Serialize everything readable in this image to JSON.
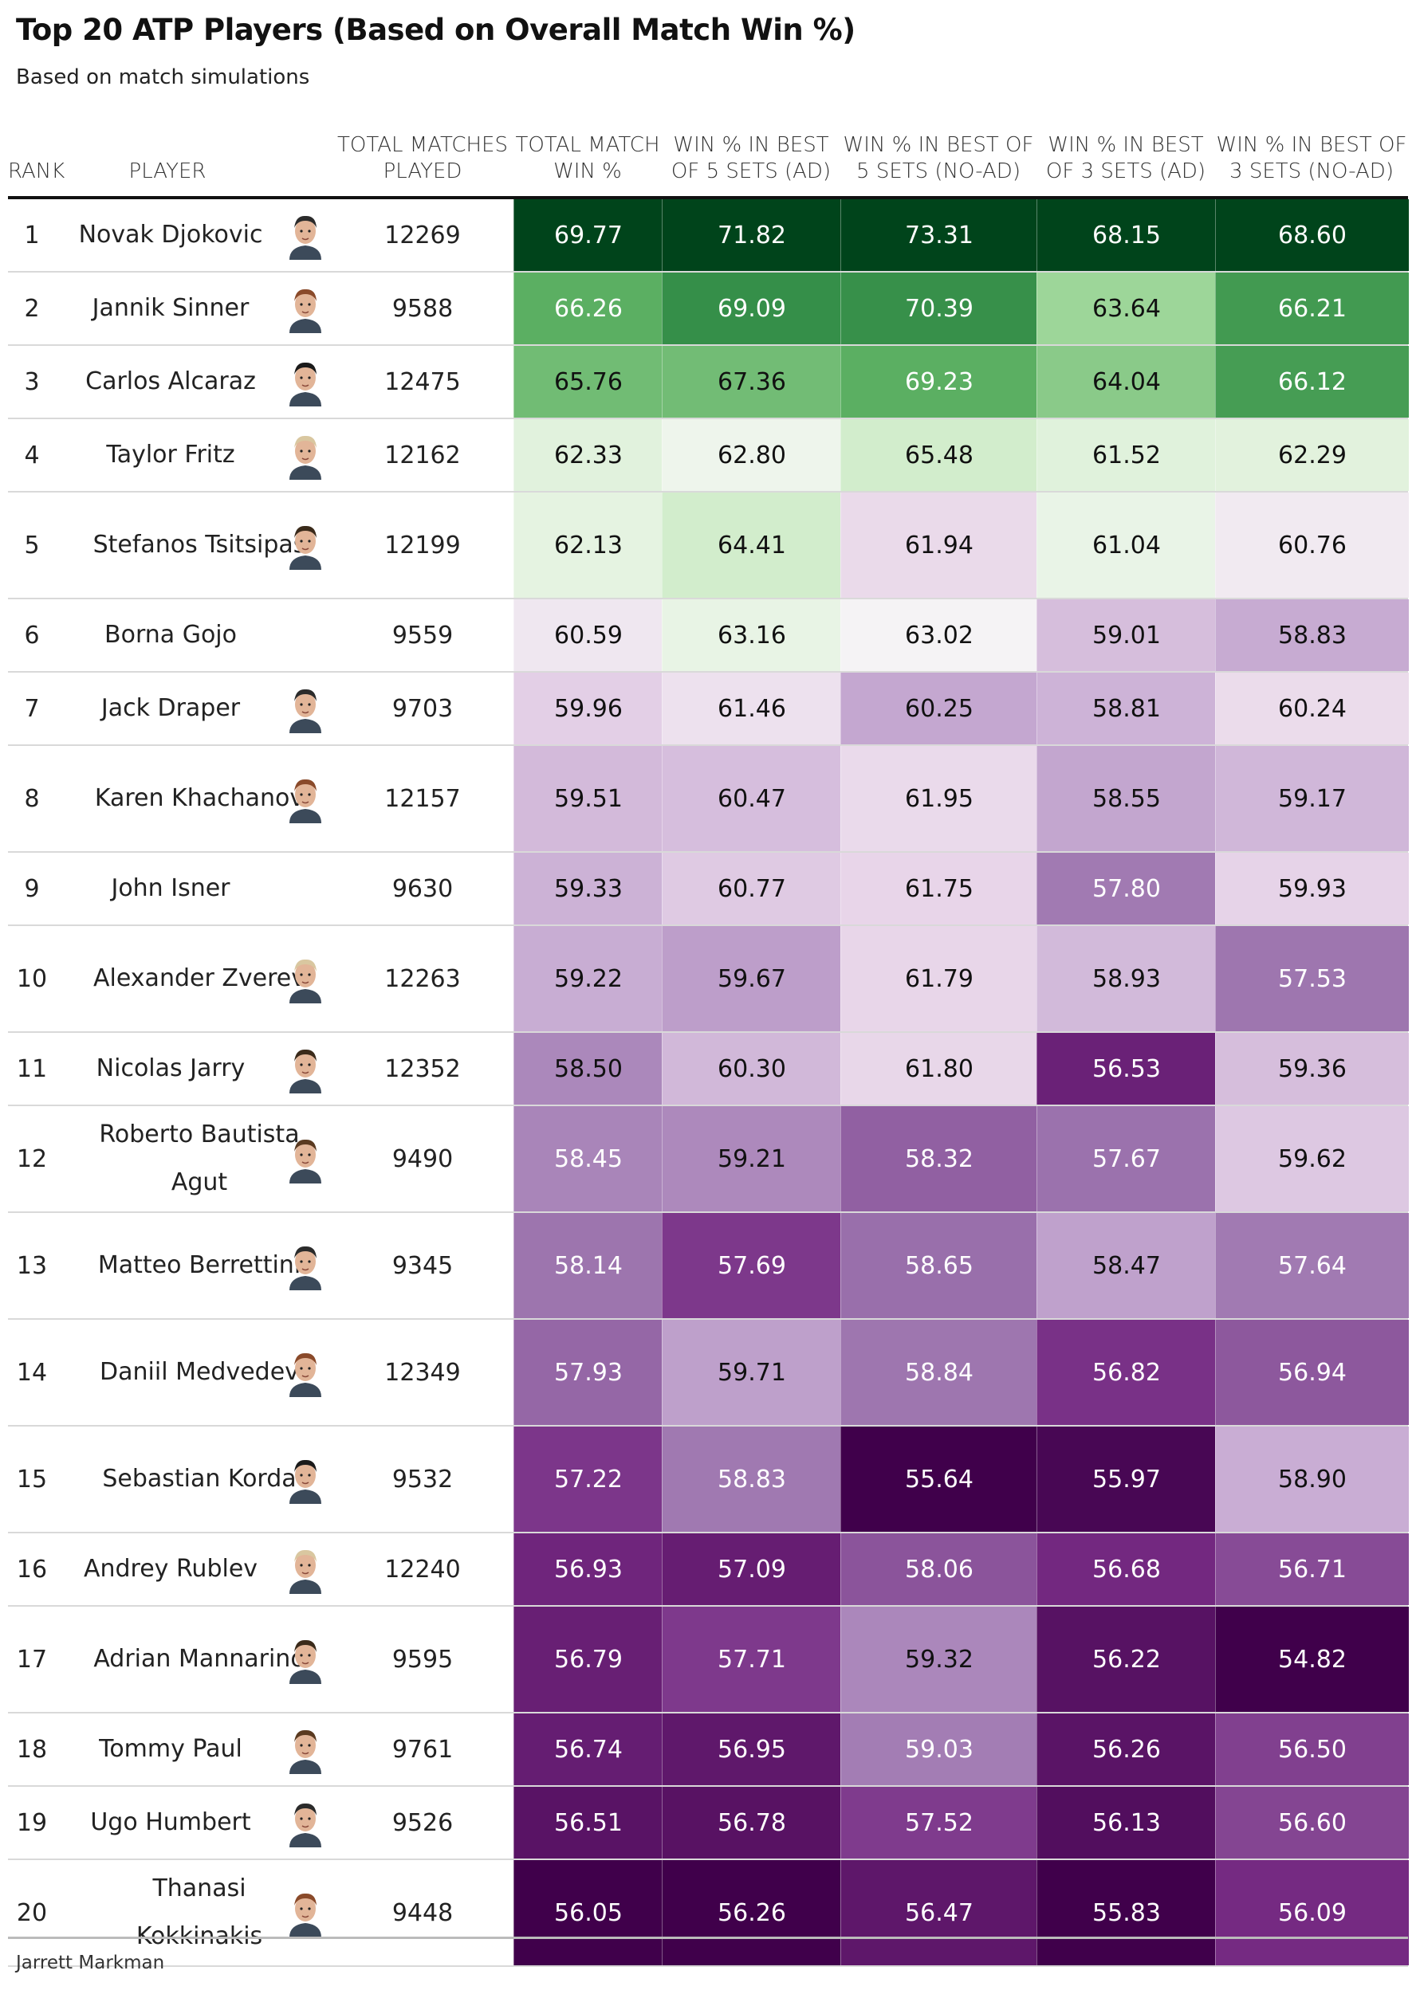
{
  "title": "Top 20 ATP Players (Based on Overall Match Win %)",
  "subtitle": "Based on match simulations",
  "footer": "Jarrett Markman",
  "columns": {
    "rank": "RANK",
    "player": "PLAYER",
    "matches": "TOTAL MATCHES PLAYED",
    "total_win": "TOTAL MATCH WIN %",
    "bo5_ad": "WIN % IN BEST OF 5 SETS (AD)",
    "bo5_noad": "WIN % IN BEST OF 5 SETS (NO-AD)",
    "bo3_ad": "WIN % IN BEST OF 3 SETS (AD)",
    "bo3_noad": "WIN % IN BEST OF 3 SETS (NO-AD)"
  },
  "colors": {
    "high": "#00441b",
    "mid": "#f7f7f7",
    "low": "#40004b"
  },
  "chart_data": {
    "type": "table",
    "title": "Top 20 ATP Players (Based on Overall Match Win %)",
    "subtitle": "Based on match simulations",
    "color_scale": "diverging green-white-purple per column",
    "rows": [
      {
        "rank": "1",
        "player": "Novak Djokovic",
        "matches": "12269",
        "avatar": true,
        "values": [
          "69.77",
          "71.82",
          "73.31",
          "68.15",
          "68.60"
        ]
      },
      {
        "rank": "2",
        "player": "Jannik Sinner",
        "matches": "9588",
        "avatar": true,
        "values": [
          "66.26",
          "69.09",
          "70.39",
          "63.64",
          "66.21"
        ]
      },
      {
        "rank": "3",
        "player": "Carlos Alcaraz",
        "matches": "12475",
        "avatar": true,
        "values": [
          "65.76",
          "67.36",
          "69.23",
          "64.04",
          "66.12"
        ]
      },
      {
        "rank": "4",
        "player": "Taylor Fritz",
        "matches": "12162",
        "avatar": true,
        "values": [
          "62.33",
          "62.80",
          "65.48",
          "61.52",
          "62.29"
        ]
      },
      {
        "rank": "5",
        "player": "Stefanos Tsitsipas",
        "matches": "12199",
        "avatar": true,
        "values": [
          "62.13",
          "64.41",
          "61.94",
          "61.04",
          "60.76"
        ]
      },
      {
        "rank": "6",
        "player": "Borna Gojo",
        "matches": "9559",
        "avatar": false,
        "values": [
          "60.59",
          "63.16",
          "63.02",
          "59.01",
          "58.83"
        ]
      },
      {
        "rank": "7",
        "player": "Jack Draper",
        "matches": "9703",
        "avatar": true,
        "values": [
          "59.96",
          "61.46",
          "60.25",
          "58.81",
          "60.24"
        ]
      },
      {
        "rank": "8",
        "player": "Karen Khachanov",
        "matches": "12157",
        "avatar": true,
        "values": [
          "59.51",
          "60.47",
          "61.95",
          "58.55",
          "59.17"
        ]
      },
      {
        "rank": "9",
        "player": "John Isner",
        "matches": "9630",
        "avatar": false,
        "values": [
          "59.33",
          "60.77",
          "61.75",
          "57.80",
          "59.93"
        ]
      },
      {
        "rank": "10",
        "player": "Alexander Zverev",
        "matches": "12263",
        "avatar": true,
        "values": [
          "59.22",
          "59.67",
          "61.79",
          "58.93",
          "57.53"
        ]
      },
      {
        "rank": "11",
        "player": "Nicolas Jarry",
        "matches": "12352",
        "avatar": true,
        "values": [
          "58.50",
          "60.30",
          "61.80",
          "56.53",
          "59.36"
        ]
      },
      {
        "rank": "12",
        "player": "Roberto Bautista Agut",
        "matches": "9490",
        "avatar": true,
        "values": [
          "58.45",
          "59.21",
          "58.32",
          "57.67",
          "59.62"
        ]
      },
      {
        "rank": "13",
        "player": "Matteo Berrettini",
        "matches": "9345",
        "avatar": true,
        "values": [
          "58.14",
          "57.69",
          "58.65",
          "58.47",
          "57.64"
        ]
      },
      {
        "rank": "14",
        "player": "Daniil Medvedev",
        "matches": "12349",
        "avatar": true,
        "values": [
          "57.93",
          "59.71",
          "58.84",
          "56.82",
          "56.94"
        ]
      },
      {
        "rank": "15",
        "player": "Sebastian Korda",
        "matches": "9532",
        "avatar": true,
        "values": [
          "57.22",
          "58.83",
          "55.64",
          "55.97",
          "58.90"
        ]
      },
      {
        "rank": "16",
        "player": "Andrey Rublev",
        "matches": "12240",
        "avatar": true,
        "values": [
          "56.93",
          "57.09",
          "58.06",
          "56.68",
          "56.71"
        ]
      },
      {
        "rank": "17",
        "player": "Adrian Mannarino",
        "matches": "9595",
        "avatar": true,
        "values": [
          "56.79",
          "57.71",
          "59.32",
          "56.22",
          "54.82"
        ]
      },
      {
        "rank": "18",
        "player": "Tommy Paul",
        "matches": "9761",
        "avatar": true,
        "values": [
          "56.74",
          "56.95",
          "59.03",
          "56.26",
          "56.50"
        ]
      },
      {
        "rank": "19",
        "player": "Ugo Humbert",
        "matches": "9526",
        "avatar": true,
        "values": [
          "56.51",
          "56.78",
          "57.52",
          "56.13",
          "56.60"
        ]
      },
      {
        "rank": "20",
        "player": "Thanasi Kokkinakis",
        "matches": "9448",
        "avatar": true,
        "values": [
          "56.05",
          "56.26",
          "56.47",
          "55.83",
          "56.09"
        ]
      }
    ]
  }
}
